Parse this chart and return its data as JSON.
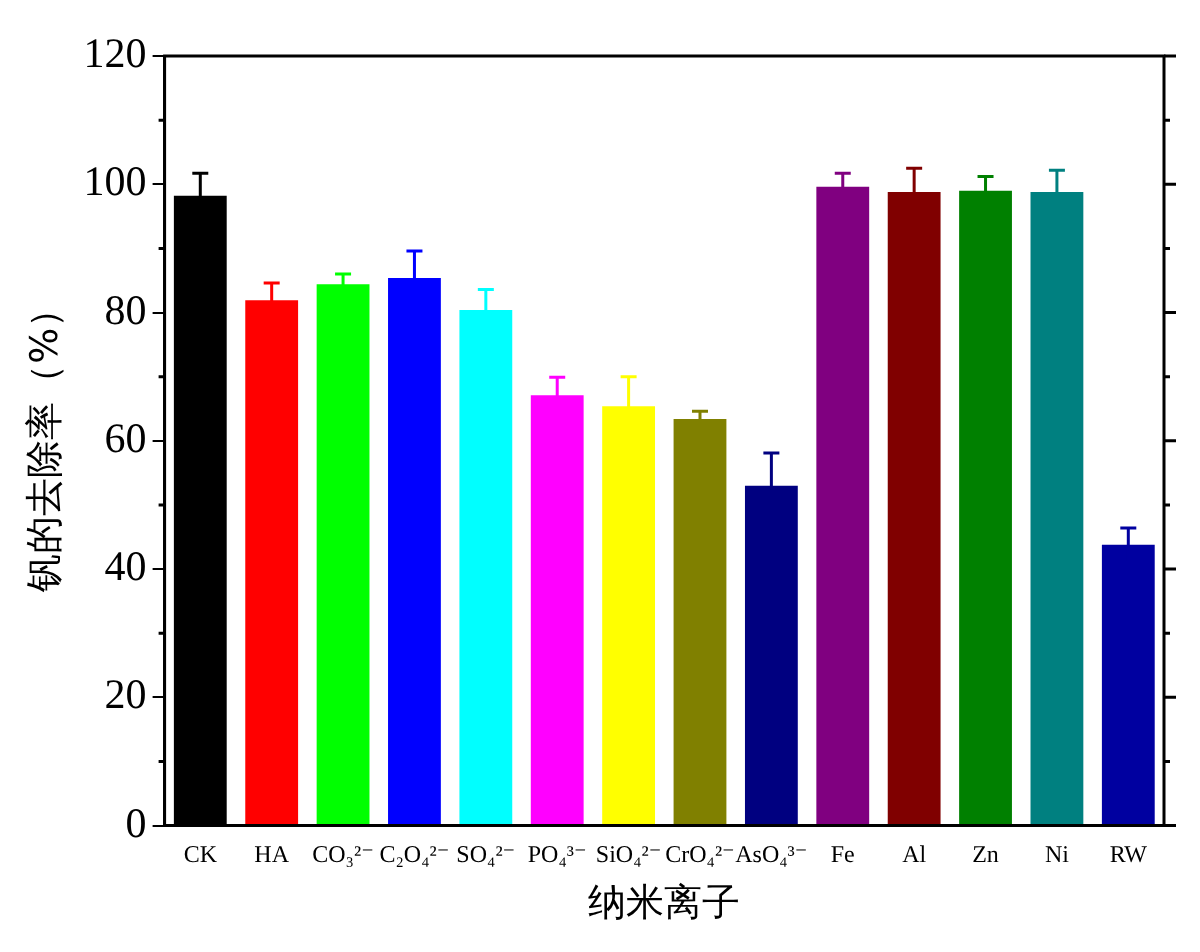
{
  "chart_data": {
    "type": "bar",
    "xlabel": "纳米离子",
    "ylabel": "钒的去除率（%）",
    "categories": [
      "CK",
      "HA",
      "CO₃²⁻",
      "C₂O₄²⁻",
      "SO₄²⁻",
      "PO₄³⁻",
      "SiO₄²⁻",
      "CrO₄²⁻",
      "AsO₄³⁻",
      "Fe",
      "Al",
      "Zn",
      "Ni",
      "RW"
    ],
    "values": [
      98.2,
      81.9,
      84.4,
      85.4,
      80.4,
      67.1,
      65.4,
      63.4,
      53.0,
      99.6,
      98.8,
      99.0,
      98.8,
      43.8
    ],
    "errors": [
      3.5,
      2.7,
      1.6,
      4.2,
      3.2,
      2.8,
      4.6,
      1.2,
      5.1,
      2.1,
      3.7,
      2.2,
      3.4,
      2.6
    ],
    "colors": [
      "#000000",
      "#ff0000",
      "#00ff00",
      "#0000ff",
      "#00ffff",
      "#ff00ff",
      "#ffff00",
      "#808000",
      "#000080",
      "#800080",
      "#800000",
      "#008000",
      "#008080",
      "#0000a0"
    ],
    "ylim": [
      0,
      120
    ],
    "yticks": [
      0,
      20,
      40,
      60,
      80,
      100,
      120
    ],
    "grid": false,
    "legend": false
  }
}
